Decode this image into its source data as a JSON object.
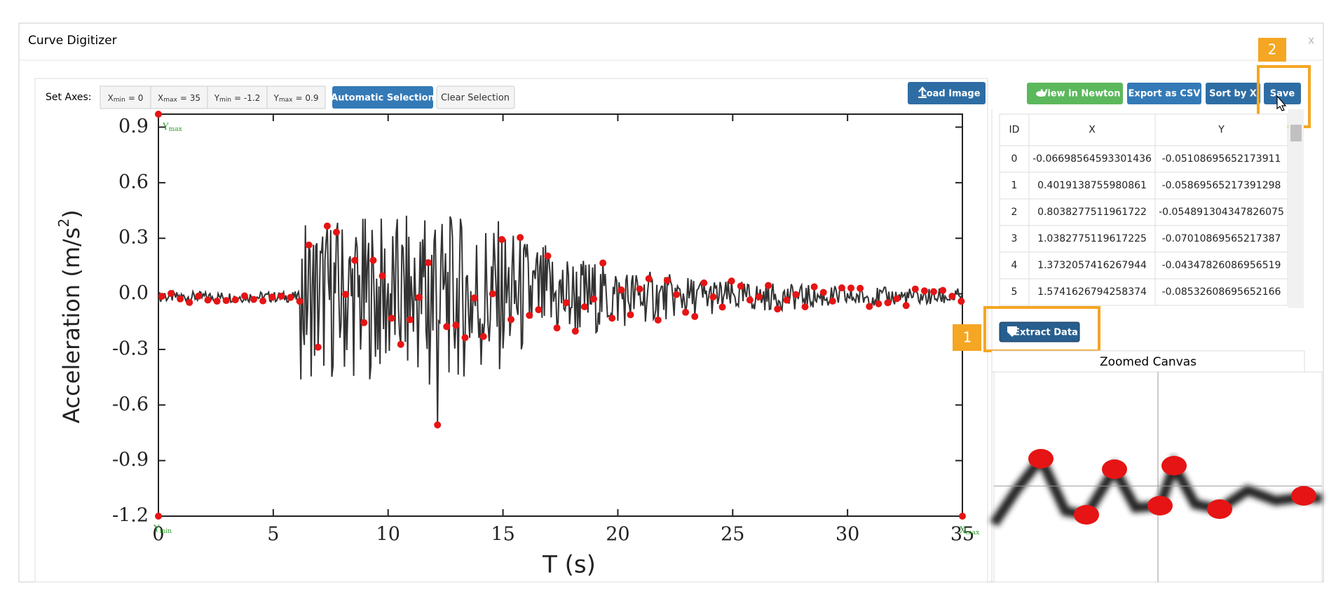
{
  "window": {
    "title": "Curve Digitizer",
    "close": "x"
  },
  "toolbar": {
    "label": "Set Axes:",
    "axes": [
      {
        "name": "X",
        "sub": "min",
        "eq": "= 0"
      },
      {
        "name": "X",
        "sub": "max",
        "eq": "= 35"
      },
      {
        "name": "Y",
        "sub": "min",
        "eq": "= -1.2"
      },
      {
        "name": "Y",
        "sub": "max",
        "eq": "= 0.9"
      }
    ],
    "auto": "Automatic Selection",
    "clear": "Clear Selection",
    "load": "Load Image"
  },
  "plot": {
    "xlabel": "T (s)",
    "ylabel": "Acceleration (m/s",
    "ylabel_sup": "2",
    "ylabel_end": ")",
    "xlim": [
      0,
      35
    ],
    "ylim": [
      -1.2,
      0.97
    ],
    "xticks": [
      0,
      5,
      10,
      15,
      20,
      25,
      30,
      35
    ],
    "yticks": [
      0.9,
      0.6,
      0.3,
      {
        "value": 0,
        "label": "0.0"
      },
      -0.3,
      -0.6,
      -0.9,
      -1.2
    ],
    "markers": [
      {
        "name": "Y",
        "sub": "max"
      },
      {
        "name": "Y",
        "sub": "min"
      },
      {
        "name": "X",
        "sub": "max"
      }
    ]
  },
  "actions": {
    "newton": "View in Newton",
    "csv": "Export as CSV",
    "sort": "Sort by X",
    "save": "Save"
  },
  "table": {
    "header": [
      "ID",
      "X",
      "Y"
    ],
    "rows": [
      [
        "0",
        "-0.06698564593301436",
        "-0.05108695652173911"
      ],
      [
        "1",
        "0.4019138755980861",
        "-0.05869565217391298"
      ],
      [
        "2",
        "0.8038277511961722",
        "-0.054891304347826075"
      ],
      [
        "3",
        "1.0382775119617225",
        "-0.07010869565217387"
      ],
      [
        "4",
        "1.3732057416267944",
        "-0.04347826086956519"
      ],
      [
        "5",
        "1.5741626794258374",
        "-0.08532608695652166"
      ]
    ]
  },
  "extract": "Extract Data",
  "zoom": {
    "title": "Zoomed Canvas"
  },
  "callouts": [
    "1",
    "2"
  ]
}
